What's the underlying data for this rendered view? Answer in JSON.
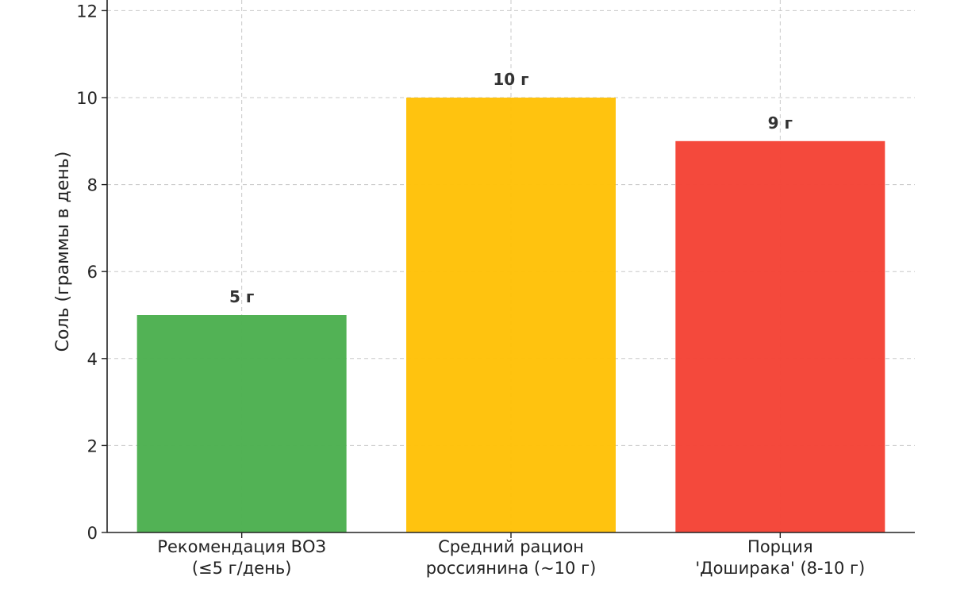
{
  "chart_data": {
    "type": "bar",
    "title": "",
    "xlabel": "",
    "ylabel": "Соль (граммы в день)",
    "ylim": [
      0,
      12
    ],
    "yticks": [
      0,
      2,
      4,
      6,
      8,
      10,
      12
    ],
    "grid": true,
    "categories": [
      [
        "Рекомендация ВОЗ",
        "(≤5 г/день)"
      ],
      [
        "Средний рацион",
        "россиянина (~10 г)"
      ],
      [
        "Порция",
        "'Доширака' (8-10 г)"
      ]
    ],
    "values": [
      5,
      10,
      9
    ],
    "data_labels": [
      "5 г",
      "10 г",
      "9 г"
    ],
    "colors": [
      "#4caf50",
      "#ffc107",
      "#f44336"
    ]
  }
}
